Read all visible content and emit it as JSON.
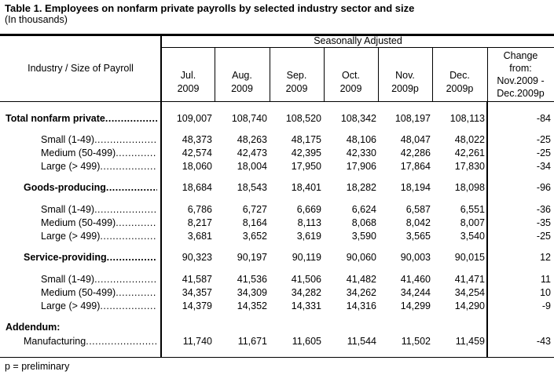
{
  "title": "Table 1.  Employees on nonfarm private payrolls by selected industry sector and size",
  "subtitle": "(In thousands)",
  "header": {
    "stub": "Industry / Size of Payroll",
    "group": "Seasonally Adjusted",
    "columns": [
      [
        "Jul.",
        "2009"
      ],
      [
        "Aug.",
        "2009"
      ],
      [
        "Sep.",
        "2009"
      ],
      [
        "Oct.",
        "2009"
      ],
      [
        "Nov.",
        "2009p"
      ],
      [
        "Dec.",
        "2009p"
      ],
      [
        "Change",
        "from:",
        "Nov.2009 -",
        "Dec.2009p"
      ]
    ]
  },
  "rows": [
    {
      "label": "Total nonfarm private",
      "level": 0,
      "bold": true,
      "values": [
        "109,007",
        "108,740",
        "108,520",
        "108,342",
        "108,197",
        "108,113",
        "-84"
      ]
    },
    {
      "label": "Small (1-49)",
      "level": 2,
      "values": [
        "48,373",
        "48,263",
        "48,175",
        "48,106",
        "48,047",
        "48,022",
        "-25"
      ]
    },
    {
      "label": "Medium (50-499)",
      "level": 2,
      "values": [
        "42,574",
        "42,473",
        "42,395",
        "42,330",
        "42,286",
        "42,261",
        "-25"
      ]
    },
    {
      "label": "Large (> 499)",
      "level": 2,
      "values": [
        "18,060",
        "18,004",
        "17,950",
        "17,906",
        "17,864",
        "17,830",
        "-34"
      ]
    },
    {
      "label": "Goods-producing",
      "level": 1,
      "bold": true,
      "values": [
        "18,684",
        "18,543",
        "18,401",
        "18,282",
        "18,194",
        "18,098",
        "-96"
      ]
    },
    {
      "label": "Small (1-49)",
      "level": 2,
      "values": [
        "6,786",
        "6,727",
        "6,669",
        "6,624",
        "6,587",
        "6,551",
        "-36"
      ]
    },
    {
      "label": "Medium (50-499)",
      "level": 2,
      "values": [
        "8,217",
        "8,164",
        "8,113",
        "8,068",
        "8,042",
        "8,007",
        "-35"
      ]
    },
    {
      "label": "Large (> 499)",
      "level": 2,
      "values": [
        "3,681",
        "3,652",
        "3,619",
        "3,590",
        "3,565",
        "3,540",
        "-25"
      ]
    },
    {
      "label": "Service-providing",
      "level": 1,
      "bold": true,
      "values": [
        "90,323",
        "90,197",
        "90,119",
        "90,060",
        "90,003",
        "90,015",
        "12"
      ]
    },
    {
      "label": "Small (1-49)",
      "level": 2,
      "values": [
        "41,587",
        "41,536",
        "41,506",
        "41,482",
        "41,460",
        "41,471",
        "11"
      ]
    },
    {
      "label": "Medium (50-499)",
      "level": 2,
      "values": [
        "34,357",
        "34,309",
        "34,282",
        "34,262",
        "34,244",
        "34,254",
        "10"
      ]
    },
    {
      "label": "Large (> 499)",
      "level": 2,
      "values": [
        "14,379",
        "14,352",
        "14,331",
        "14,316",
        "14,299",
        "14,290",
        "-9"
      ]
    },
    {
      "label": "Addendum:",
      "level": 0,
      "bold": true,
      "nodots": true,
      "values": []
    },
    {
      "label": "Manufacturing",
      "level": 1,
      "values": [
        "11,740",
        "11,671",
        "11,605",
        "11,544",
        "11,502",
        "11,459",
        "-43"
      ]
    }
  ],
  "footnote": "p = preliminary"
}
